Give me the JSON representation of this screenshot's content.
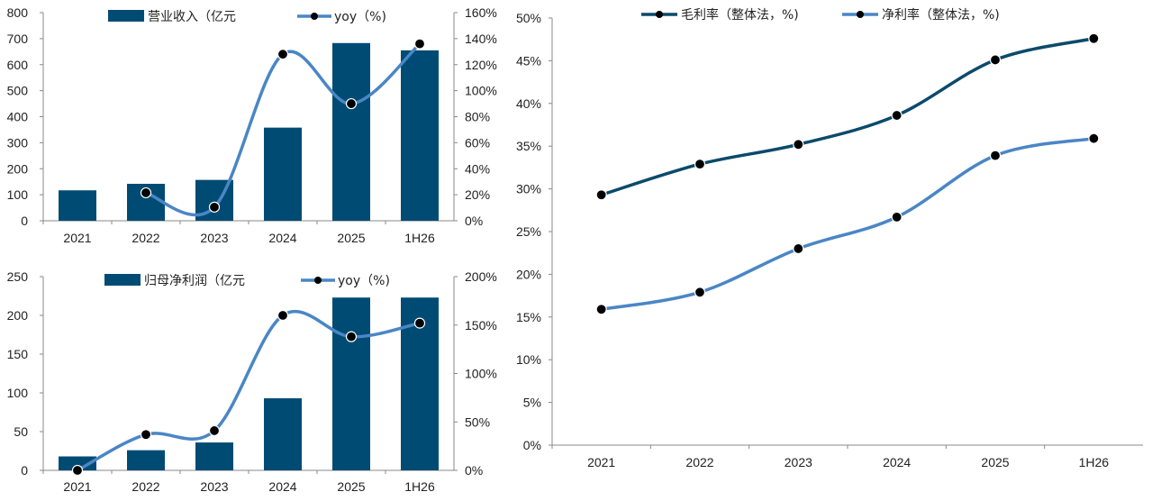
{
  "chart_data": [
    {
      "type": "bar",
      "categories": [
        "2021",
        "2022",
        "2023",
        "2024",
        "2025",
        "1H26"
      ],
      "series": [
        {
          "name": "营业收入（亿元",
          "type": "bar",
          "values": [
            117,
            142,
            157,
            358,
            683,
            655
          ],
          "color": "#004B74"
        },
        {
          "name": "yoy（%)",
          "type": "line",
          "values": [
            null,
            21.5,
            10.5,
            128,
            90,
            136
          ],
          "color": "#4A86C5",
          "axis": "right"
        }
      ],
      "ylim": [
        0,
        800
      ],
      "y2lim": [
        0,
        160
      ],
      "yticks": [
        "0",
        "100",
        "200",
        "300",
        "400",
        "500",
        "600",
        "700",
        "800"
      ],
      "y2ticks": [
        "0%",
        "20%",
        "40%",
        "60%",
        "80%",
        "100%",
        "120%",
        "140%",
        "160%"
      ],
      "legend": "top"
    },
    {
      "type": "bar",
      "categories": [
        "2021",
        "2022",
        "2023",
        "2024",
        "2025",
        "1H26"
      ],
      "series": [
        {
          "name": "归母净利润（亿元",
          "type": "bar",
          "values": [
            18,
            26,
            36,
            93,
            223,
            223
          ],
          "color": "#004B74"
        },
        {
          "name": "yoy（%)",
          "type": "line",
          "values": [
            0,
            37,
            41,
            160,
            138,
            152
          ],
          "color": "#4A86C5",
          "axis": "right"
        }
      ],
      "ylim": [
        0,
        250
      ],
      "y2lim": [
        0,
        200
      ],
      "yticks": [
        "0",
        "50",
        "100",
        "150",
        "200",
        "250"
      ],
      "y2ticks": [
        "0%",
        "50%",
        "100%",
        "150%",
        "200%"
      ],
      "legend": "top"
    },
    {
      "type": "line",
      "categories": [
        "2021",
        "2022",
        "2023",
        "2024",
        "2025",
        "1H26"
      ],
      "series": [
        {
          "name": "毛利率（整体法，%)",
          "values": [
            29.3,
            32.9,
            35.2,
            38.6,
            45.1,
            47.6
          ],
          "color": "#0B4A6B"
        },
        {
          "name": "净利率（整体法，%)",
          "values": [
            15.9,
            17.9,
            23.0,
            26.7,
            33.9,
            35.9
          ],
          "color": "#4A86C5"
        }
      ],
      "ylim": [
        0,
        50
      ],
      "yticks": [
        "0%",
        "5%",
        "10%",
        "15%",
        "20%",
        "25%",
        "30%",
        "35%",
        "40%",
        "45%",
        "50%"
      ],
      "legend": "top"
    }
  ]
}
